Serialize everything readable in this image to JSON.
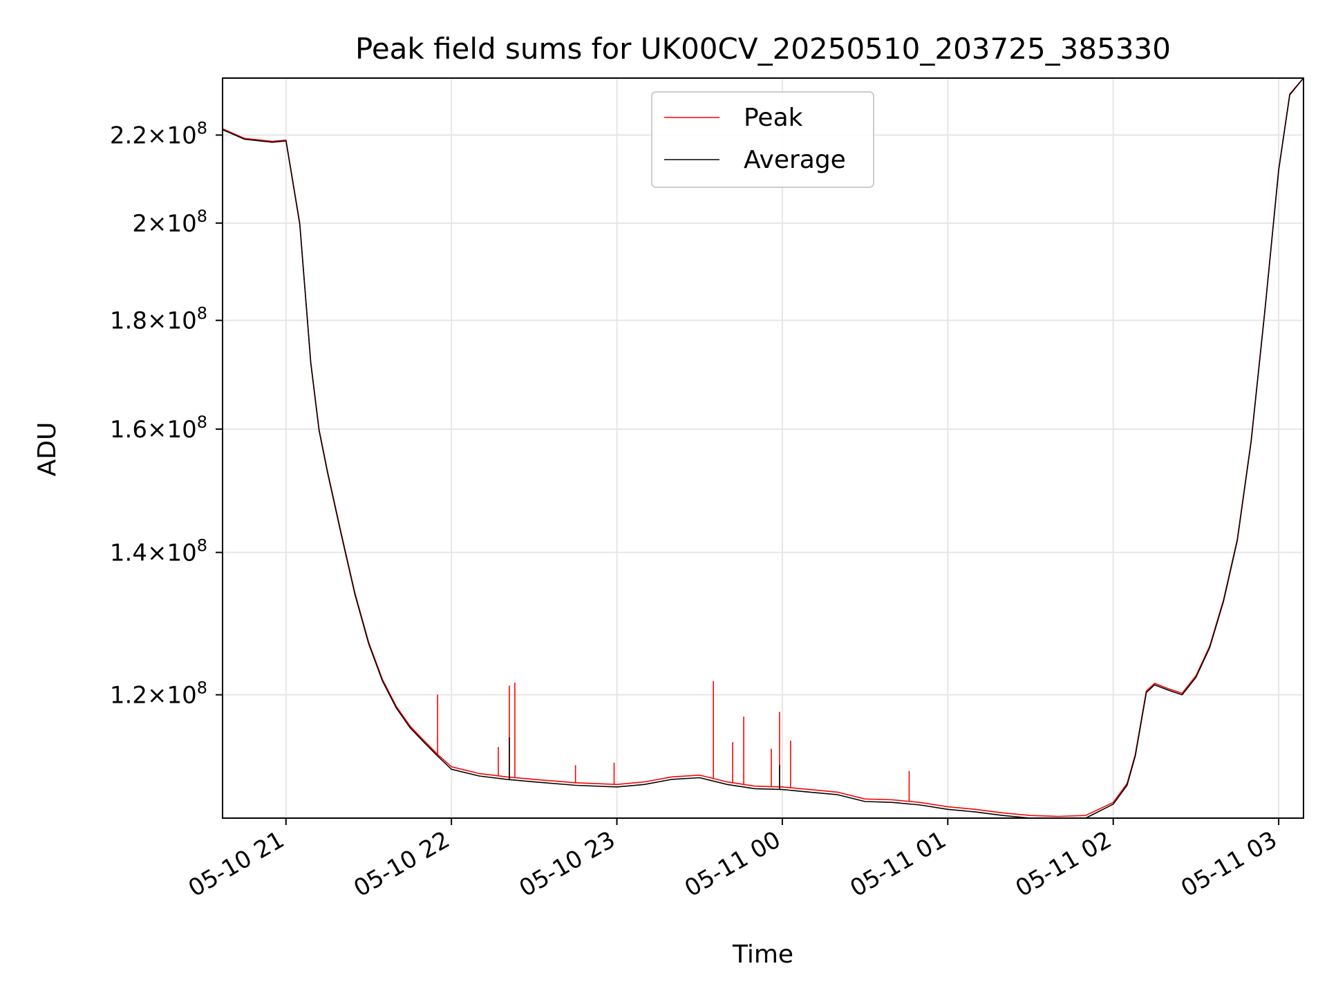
{
  "chart_data": {
    "type": "line",
    "title": "Peak field sums for UK00CV_20250510_203725_385330",
    "xlabel": "Time",
    "ylabel": "ADU",
    "y_scale": "log",
    "grid": true,
    "legend_placement": "upper center",
    "x_ticks": [
      "05-10 21",
      "05-10 22",
      "05-10 23",
      "05-11 00",
      "05-11 01",
      "05-11 02",
      "05-11 03"
    ],
    "x_tick_times": [
      "2025-05-10 21:00",
      "2025-05-10 22:00",
      "2025-05-10 23:00",
      "2025-05-11 00:00",
      "2025-05-11 01:00",
      "2025-05-11 02:00",
      "2025-05-11 03:00"
    ],
    "xlim": [
      "2025-05-10 20:37",
      "2025-05-11 03:09"
    ],
    "y_ticks": [
      {
        "value": 120000000,
        "mant": "1.2",
        "exp": "8"
      },
      {
        "value": 140000000,
        "mant": "1.4",
        "exp": "8"
      },
      {
        "value": 160000000,
        "mant": "1.6",
        "exp": "8"
      },
      {
        "value": 180000000,
        "mant": "1.8",
        "exp": "8"
      },
      {
        "value": 200000000,
        "mant": "2",
        "exp": "8"
      },
      {
        "value": 220000000,
        "mant": "2.2",
        "exp": "8"
      }
    ],
    "ylim": [
      105000000,
      234000000
    ],
    "series": [
      {
        "name": "Peak",
        "color": "#ff0000",
        "x": [
          "2025-05-10 20:37",
          "2025-05-10 20:45",
          "2025-05-10 20:55",
          "2025-05-10 21:00",
          "2025-05-10 21:05",
          "2025-05-10 21:09",
          "2025-05-10 21:12",
          "2025-05-10 21:15",
          "2025-05-10 21:20",
          "2025-05-10 21:25",
          "2025-05-10 21:30",
          "2025-05-10 21:35",
          "2025-05-10 21:40",
          "2025-05-10 21:45",
          "2025-05-10 21:50",
          "2025-05-10 21:55",
          "2025-05-10 22:00",
          "2025-05-10 22:10",
          "2025-05-10 22:20",
          "2025-05-10 22:30",
          "2025-05-10 22:45",
          "2025-05-10 23:00",
          "2025-05-10 23:10",
          "2025-05-10 23:20",
          "2025-05-10 23:30",
          "2025-05-10 23:40",
          "2025-05-10 23:50",
          "2025-05-11 00:00",
          "2025-05-11 00:10",
          "2025-05-11 00:20",
          "2025-05-11 00:30",
          "2025-05-11 00:40",
          "2025-05-11 00:50",
          "2025-05-11 01:00",
          "2025-05-11 01:10",
          "2025-05-11 01:20",
          "2025-05-11 01:30",
          "2025-05-11 01:40",
          "2025-05-11 01:50",
          "2025-05-11 02:00",
          "2025-05-11 02:05",
          "2025-05-11 02:08",
          "2025-05-11 02:12",
          "2025-05-11 02:15",
          "2025-05-11 02:20",
          "2025-05-11 02:25",
          "2025-05-11 02:30",
          "2025-05-11 02:35",
          "2025-05-11 02:40",
          "2025-05-11 02:45",
          "2025-05-11 02:50",
          "2025-05-11 02:55",
          "2025-05-11 03:00",
          "2025-05-11 03:04",
          "2025-05-11 03:09"
        ],
        "values": [
          221500000,
          219200000,
          218500000,
          218800000,
          200000000,
          172000000,
          160000000,
          153000000,
          143000000,
          134000000,
          127000000,
          122000000,
          118500000,
          116000000,
          114200000,
          112500000,
          111000000,
          110200000,
          109800000,
          109500000,
          109100000,
          108900000,
          109200000,
          109800000,
          110000000,
          109200000,
          108700000,
          108600000,
          108300000,
          108000000,
          107200000,
          107100000,
          106800000,
          106300000,
          106000000,
          105600000,
          105300000,
          105200000,
          105300000,
          106800000,
          109000000,
          112500000,
          120500000,
          121500000,
          120800000,
          120200000,
          122500000,
          126500000,
          133000000,
          142000000,
          158000000,
          182000000,
          212000000,
          230000000,
          234000000
        ],
        "spikes": [
          {
            "x": "2025-05-10 21:55",
            "value": 120000000
          },
          {
            "x": "2025-05-10 22:17",
            "value": 113400000
          },
          {
            "x": "2025-05-10 22:21",
            "value": 121200000
          },
          {
            "x": "2025-05-10 22:23",
            "value": 121600000
          },
          {
            "x": "2025-05-10 22:45",
            "value": 111200000
          },
          {
            "x": "2025-05-10 22:59",
            "value": 111500000
          },
          {
            "x": "2025-05-10 23:35",
            "value": 121800000
          },
          {
            "x": "2025-05-10 23:42",
            "value": 114000000
          },
          {
            "x": "2025-05-10 23:46",
            "value": 117200000
          },
          {
            "x": "2025-05-10 23:56",
            "value": 113200000
          },
          {
            "x": "2025-05-10 23:59",
            "value": 117800000
          },
          {
            "x": "2025-05-11 00:03",
            "value": 114200000
          },
          {
            "x": "2025-05-11 00:46",
            "value": 110500000
          }
        ]
      },
      {
        "name": "Average",
        "color": "#000000",
        "x": [
          "2025-05-10 20:37",
          "2025-05-10 20:45",
          "2025-05-10 20:55",
          "2025-05-10 21:00",
          "2025-05-10 21:05",
          "2025-05-10 21:09",
          "2025-05-10 21:12",
          "2025-05-10 21:15",
          "2025-05-10 21:20",
          "2025-05-10 21:25",
          "2025-05-10 21:30",
          "2025-05-10 21:35",
          "2025-05-10 21:40",
          "2025-05-10 21:45",
          "2025-05-10 21:50",
          "2025-05-10 21:55",
          "2025-05-10 22:00",
          "2025-05-10 22:10",
          "2025-05-10 22:20",
          "2025-05-10 22:30",
          "2025-05-10 22:45",
          "2025-05-10 23:00",
          "2025-05-10 23:10",
          "2025-05-10 23:20",
          "2025-05-10 23:30",
          "2025-05-10 23:40",
          "2025-05-10 23:50",
          "2025-05-11 00:00",
          "2025-05-11 00:10",
          "2025-05-11 00:20",
          "2025-05-11 00:30",
          "2025-05-11 00:40",
          "2025-05-11 00:50",
          "2025-05-11 01:00",
          "2025-05-11 01:10",
          "2025-05-11 01:20",
          "2025-05-11 01:30",
          "2025-05-11 01:40",
          "2025-05-11 01:50",
          "2025-05-11 02:00",
          "2025-05-11 02:05",
          "2025-05-11 02:08",
          "2025-05-11 02:12",
          "2025-05-11 02:15",
          "2025-05-11 02:20",
          "2025-05-11 02:25",
          "2025-05-11 02:30",
          "2025-05-11 02:35",
          "2025-05-11 02:40",
          "2025-05-11 02:45",
          "2025-05-11 02:50",
          "2025-05-11 02:55",
          "2025-05-11 03:00",
          "2025-05-11 03:04",
          "2025-05-11 03:09"
        ],
        "values": [
          221300000,
          219000000,
          218300000,
          218600000,
          199800000,
          171800000,
          159800000,
          152800000,
          142800000,
          133800000,
          126800000,
          121800000,
          118300000,
          115800000,
          114000000,
          112300000,
          110700000,
          109900000,
          109500000,
          109200000,
          108800000,
          108600000,
          108900000,
          109500000,
          109700000,
          108900000,
          108400000,
          108300000,
          108000000,
          107700000,
          106900000,
          106800000,
          106500000,
          106000000,
          105700000,
          105300000,
          105000000,
          104900000,
          105000000,
          106600000,
          108800000,
          112300000,
          120300000,
          121300000,
          120600000,
          120000000,
          122300000,
          126300000,
          132800000,
          141800000,
          157800000,
          181800000,
          211800000,
          229800000,
          234000000
        ],
        "spikes": [
          {
            "x": "2025-05-10 22:21",
            "value": 114600000
          },
          {
            "x": "2025-05-10 23:59",
            "value": 111200000
          }
        ]
      }
    ]
  }
}
